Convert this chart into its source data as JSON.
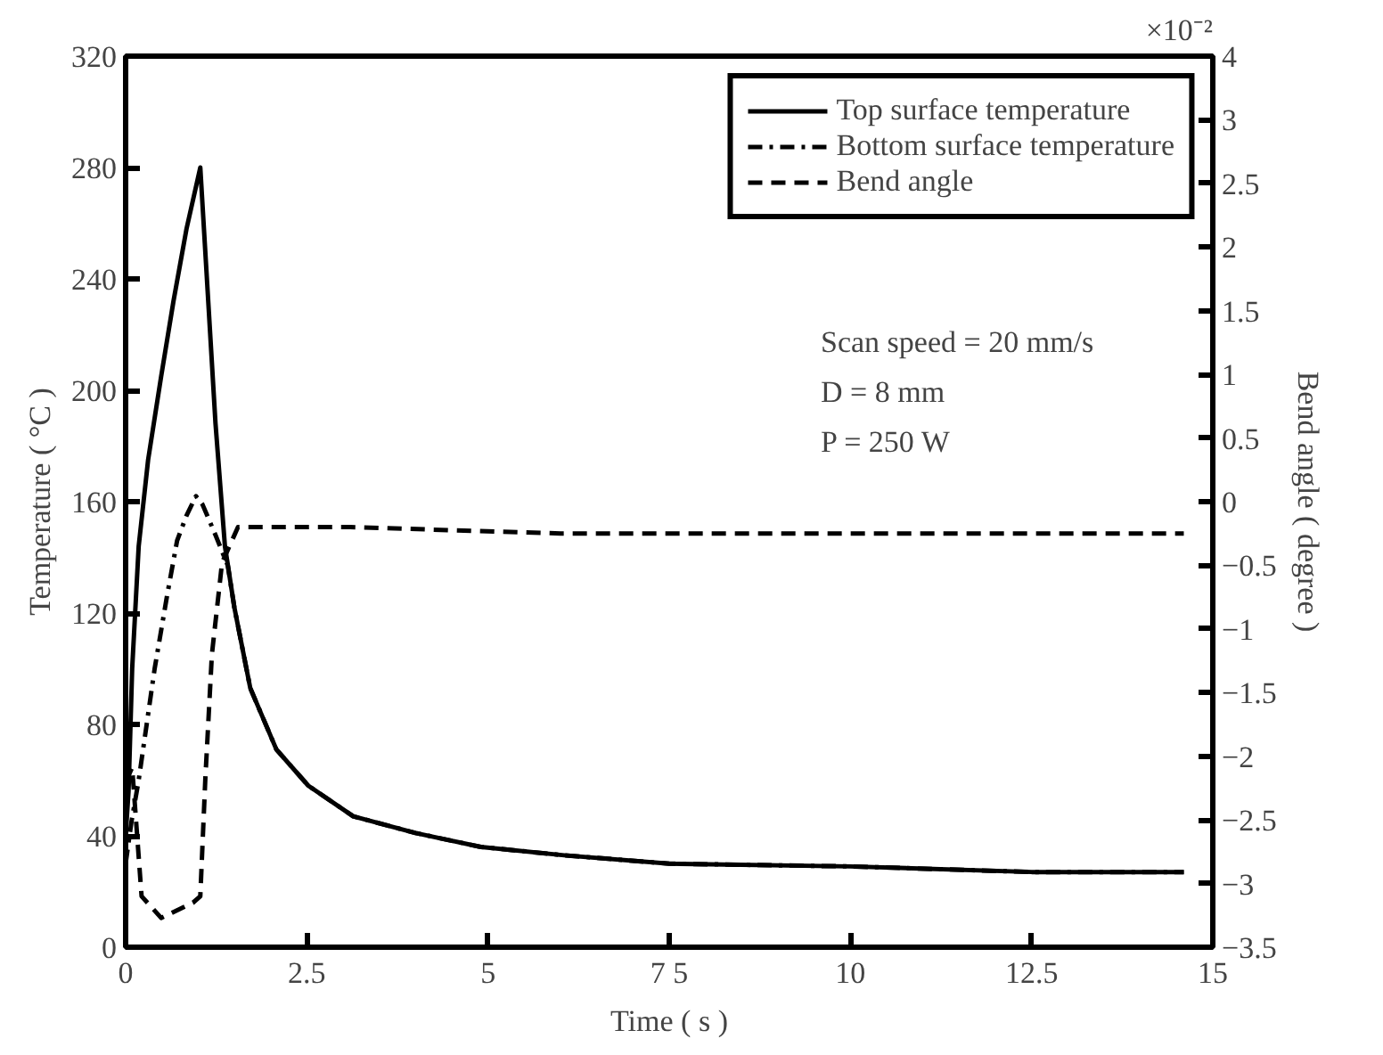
{
  "chart_data": {
    "type": "line",
    "xlabel": "Time ( s )",
    "ylabel": "Temperature ( °C )",
    "y2label": "Bend angle ( degree )",
    "xlim": [
      0,
      15
    ],
    "xticks": [
      0,
      2.5,
      5,
      {
        "value": 7.5,
        "label": "7 5"
      },
      10,
      12.5,
      15
    ],
    "ylim": [
      0,
      320
    ],
    "yticks": [
      0,
      40,
      80,
      120,
      160,
      200,
      240,
      280,
      320
    ],
    "y2lim": [
      -3.5,
      3.5
    ],
    "y2ticks": [
      -3.5,
      -3,
      -2.5,
      -2,
      -1.5,
      -1,
      -0.5,
      0,
      0.5,
      1,
      1.5,
      2,
      2.5,
      3,
      {
        "value": 3.5,
        "label": "4"
      }
    ],
    "grid": false,
    "legend": "top right",
    "marker": "none",
    "annotations": [
      "×10⁻²",
      "Scan speed = 20 mm/s",
      "D = 8 mm",
      "P = 250 W"
    ],
    "series": [
      {
        "name": "Top surface temperature",
        "color": "#000000",
        "line_style": "solid",
        "x": [
          0,
          0.04,
          0.09,
          0.18,
          0.31,
          0.49,
          0.66,
          0.84,
          1.03,
          1.24,
          1.37,
          1.5,
          1.72,
          2.08,
          2.52,
          3.14,
          4.0,
          4.9,
          6.05,
          7.5,
          10,
          12.5,
          14.6
        ],
        "values": [
          40,
          56,
          100,
          144,
          175,
          205,
          232,
          258,
          280,
          188,
          144,
          122,
          93,
          71,
          58,
          47,
          41,
          36,
          33,
          30,
          29,
          27,
          27
        ]
      },
      {
        "name": "Bottom surface temperature",
        "color": "#000000",
        "line_style": "dashdot",
        "x": [
          0,
          0.08,
          0.18,
          0.4,
          0.57,
          0.71,
          0.84,
          0.97,
          1.06,
          1.24,
          1.41,
          1.5,
          1.72,
          2.08,
          2.52,
          3.14,
          4.0,
          4.9,
          6.05,
          7.5,
          10,
          12.5,
          14.6
        ],
        "values": [
          30,
          45,
          60,
          100,
          126,
          146,
          155,
          162,
          159,
          148,
          137,
          122,
          93,
          71,
          58,
          47,
          41,
          36,
          33,
          30,
          29,
          27,
          27
        ]
      },
      {
        "name": "Bend angle",
        "color": "#000000",
        "line_style": "dashed",
        "axis": "y2",
        "x": [
          0,
          0.09,
          0.22,
          0.49,
          0.93,
          1.03,
          1.1,
          1.19,
          1.33,
          1.55,
          3.1,
          6,
          10,
          14.6
        ],
        "values": [
          -2.2,
          -2.09,
          -3.1,
          -3.27,
          -3.15,
          -3.1,
          -2.17,
          -1.2,
          -0.48,
          -0.2,
          -0.2,
          -0.25,
          -0.25,
          -0.25
        ]
      }
    ]
  }
}
